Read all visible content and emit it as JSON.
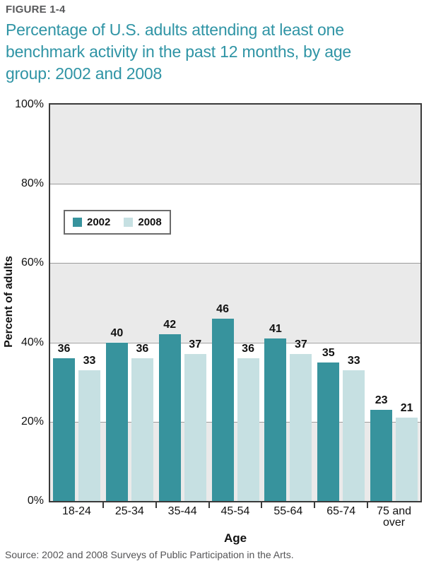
{
  "figure_label": "FIGURE 1-4",
  "title_lines": [
    "Percentage of U.S. adults attending at least one",
    "benchmark activity in the past 12 months, by age",
    "group: 2002 and 2008"
  ],
  "source": "Source: 2002 and 2008 Surveys of Public Participation in the Arts.",
  "colors": {
    "title_teal": "#2f94a5",
    "bar_2002": "#37939d",
    "bar_2008": "#c6e0e2",
    "band_gray": "#eaeaea",
    "gridline_gray": "#9b9b9b",
    "frame_dark": "#3a3a3a",
    "figure_label_gray": "#58595b",
    "source_gray": "#545456"
  },
  "chart_data": {
    "type": "bar",
    "categories": [
      "18-24",
      "25-34",
      "35-44",
      "45-54",
      "55-64",
      "65-74",
      "75 and over"
    ],
    "series": [
      {
        "name": "2002",
        "values": [
          36,
          40,
          42,
          46,
          41,
          35,
          23
        ]
      },
      {
        "name": "2008",
        "values": [
          33,
          36,
          37,
          36,
          37,
          33,
          21
        ]
      }
    ],
    "xlabel": "Age",
    "ylabel": "Percent of adults",
    "ylim": [
      0,
      100
    ],
    "yticks": [
      "0%",
      "20%",
      "40%",
      "60%",
      "80%",
      "100%"
    ],
    "grid": "horizontal-20pct-bands",
    "legend_position": "inside-upper-left",
    "data_labels": true
  }
}
